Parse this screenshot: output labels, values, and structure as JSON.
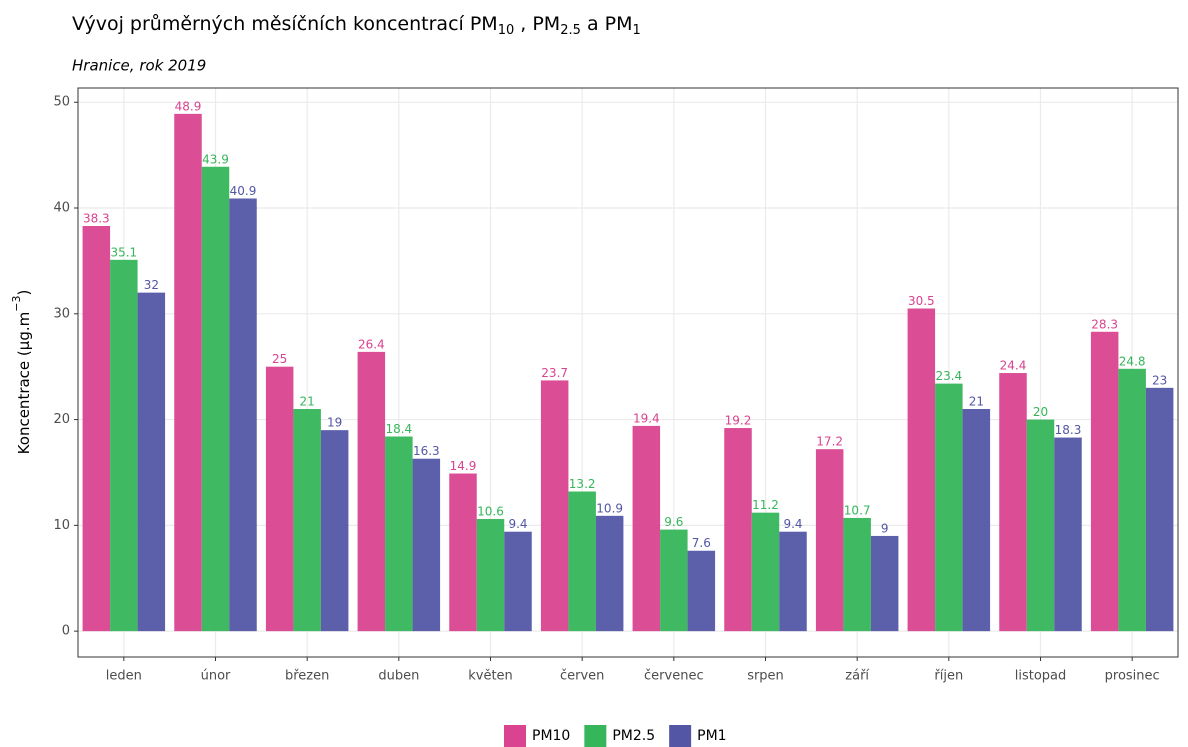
{
  "chart_data": {
    "type": "bar",
    "title": [
      "Vývoj průměrných měsíčních koncentrací PM",
      "10",
      " , PM",
      "2.5",
      " a PM",
      "1"
    ],
    "subtitle": "Hranice, rok 2019",
    "y_label": [
      "Koncentrace (µg.m",
      "−3",
      ")"
    ],
    "categories": [
      "leden",
      "únor",
      "březen",
      "duben",
      "květen",
      "červen",
      "červenec",
      "srpen",
      "září",
      "říjen",
      "listopad",
      "prosinec"
    ],
    "series": [
      {
        "name": "PM10",
        "color": "#d9438f",
        "values": [
          38.3,
          48.9,
          25,
          26.4,
          14.9,
          23.7,
          19.4,
          19.2,
          17.2,
          30.5,
          24.4,
          28.3
        ]
      },
      {
        "name": "PM2.5",
        "color": "#36b65a",
        "values": [
          35.1,
          43.9,
          21,
          18.4,
          10.6,
          13.2,
          9.6,
          11.2,
          10.7,
          23.4,
          20,
          24.8
        ]
      },
      {
        "name": "PM1",
        "color": "#5356a5",
        "values": [
          32,
          40.9,
          19,
          16.3,
          9.4,
          10.9,
          7.6,
          9.4,
          9,
          21,
          18.3,
          23
        ]
      }
    ],
    "ylim": [
      -2.445,
      51.345
    ],
    "yticks": [
      0,
      10,
      20,
      30,
      40,
      50
    ],
    "grid": true,
    "legend": "bottom"
  }
}
